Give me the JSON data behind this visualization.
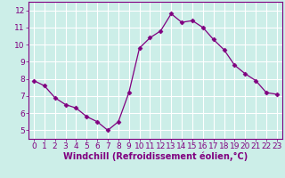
{
  "x": [
    0,
    1,
    2,
    3,
    4,
    5,
    6,
    7,
    8,
    9,
    10,
    11,
    12,
    13,
    14,
    15,
    16,
    17,
    18,
    19,
    20,
    21,
    22,
    23
  ],
  "y": [
    7.9,
    7.6,
    6.9,
    6.5,
    6.3,
    5.8,
    5.5,
    5.0,
    5.5,
    7.2,
    9.8,
    10.4,
    10.8,
    11.8,
    11.3,
    11.4,
    11.0,
    10.3,
    9.7,
    8.8,
    8.3,
    7.9,
    7.2,
    7.1
  ],
  "xlim": [
    -0.5,
    23.5
  ],
  "ylim": [
    4.5,
    12.5
  ],
  "yticks": [
    5,
    6,
    7,
    8,
    9,
    10,
    11,
    12
  ],
  "xticks": [
    0,
    1,
    2,
    3,
    4,
    5,
    6,
    7,
    8,
    9,
    10,
    11,
    12,
    13,
    14,
    15,
    16,
    17,
    18,
    19,
    20,
    21,
    22,
    23
  ],
  "xlabel": "Windchill (Refroidissement éolien,°C)",
  "line_color": "#800080",
  "marker": "D",
  "marker_size": 2.5,
  "bg_color": "#cceee8",
  "grid_color": "#ffffff",
  "tick_label_fontsize": 6.5,
  "xlabel_fontsize": 7.0,
  "linewidth": 0.9
}
